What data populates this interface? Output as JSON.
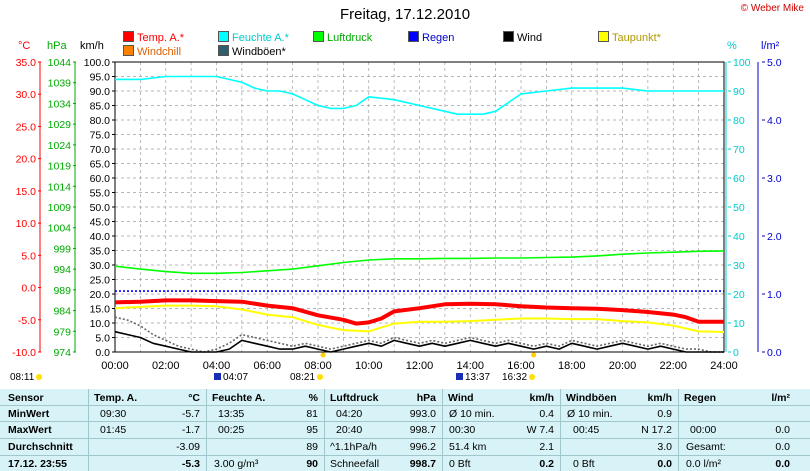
{
  "page": {
    "title": "Freitag, 17.12.2010",
    "copyright": "© Weber Mike"
  },
  "units": {
    "temp": "°C",
    "pressure": "hPa",
    "wind": "km/h",
    "humidity": "%",
    "rain": "l/m²"
  },
  "legend": [
    {
      "label": "Temp. A.*",
      "color": "#ff0000"
    },
    {
      "label": "Feuchte A.*",
      "color": "#00ffff"
    },
    {
      "label": "Luftdruck",
      "color": "#00ff00"
    },
    {
      "label": "Regen",
      "color": "#0000ff"
    },
    {
      "label": "Wind",
      "color": "#000000"
    },
    {
      "label": "Taupunkt*",
      "color": "#ffff00"
    },
    {
      "label": "Windchill",
      "color": "#ff8000"
    },
    {
      "label": "Windböen*",
      "color": "#2f5f6f"
    }
  ],
  "sun_events": [
    {
      "time": "08:11"
    },
    {
      "time": "04:07"
    },
    {
      "time": "08:21"
    },
    {
      "time": "13:37"
    },
    {
      "time": "16:32"
    }
  ],
  "chart_data": {
    "type": "line",
    "x_axis": {
      "label_ticks": [
        "00:00",
        "02:00",
        "04:00",
        "06:00",
        "08:00",
        "10:00",
        "12:00",
        "14:00",
        "16:00",
        "18:00",
        "20:00",
        "22:00",
        "24:00"
      ],
      "range_h": [
        0,
        24
      ]
    },
    "axes": {
      "temp": {
        "unit": "°C",
        "ticks": [
          "35.0",
          "30.0",
          "25.0",
          "20.0",
          "15.0",
          "10.0",
          "5.0",
          "0.0",
          "-5.0",
          "-10.0"
        ],
        "range": [
          -10,
          35
        ]
      },
      "pressure": {
        "unit": "hPa",
        "ticks": [
          "1044",
          "1039",
          "1034",
          "1029",
          "1024",
          "1019",
          "1014",
          "1009",
          "1004",
          "999",
          "994",
          "989",
          "984",
          "979",
          "974"
        ],
        "range": [
          974,
          1044
        ]
      },
      "wind": {
        "unit": "km/h",
        "ticks": [
          "100.0",
          "95.0",
          "90.0",
          "85.0",
          "80.0",
          "75.0",
          "70.0",
          "65.0",
          "60.0",
          "55.0",
          "50.0",
          "45.0",
          "40.0",
          "35.0",
          "30.0",
          "25.0",
          "20.0",
          "15.0",
          "10.0",
          "5.0",
          "0.0"
        ],
        "range": [
          0,
          100
        ]
      },
      "humidity": {
        "unit": "%",
        "ticks": [
          "100",
          "90",
          "80",
          "70",
          "60",
          "50",
          "40",
          "30",
          "20",
          "10",
          "0"
        ],
        "range": [
          0,
          100
        ]
      },
      "rain": {
        "unit": "l/m²",
        "ticks": [
          "5.0",
          "4.0",
          "3.0",
          "2.0",
          "1.0",
          "0.0"
        ],
        "range": [
          0,
          5
        ]
      }
    },
    "grid": true,
    "zero_line_temp": 0,
    "series": [
      {
        "name": "Feuchte A.*",
        "axis": "humidity",
        "color": "#00ffff",
        "x": [
          0,
          1,
          2,
          3,
          4,
          4.5,
          5,
          5.5,
          6,
          6.5,
          7,
          7.5,
          8,
          8.5,
          9,
          9.5,
          10,
          11,
          12,
          13,
          13.5,
          14,
          14.5,
          15,
          15.5,
          16,
          17,
          18,
          19,
          20,
          21,
          22,
          23,
          24
        ],
        "y": [
          94,
          94,
          95,
          95,
          95,
          94,
          93,
          91,
          90,
          90,
          89,
          87,
          85,
          84,
          84,
          85,
          88,
          87,
          85,
          83,
          82,
          82,
          82,
          83,
          86,
          89,
          90,
          91,
          91,
          91,
          90,
          90,
          90,
          90
        ]
      },
      {
        "name": "Luftdruck",
        "axis": "pressure",
        "color": "#00ff00",
        "x": [
          0,
          1,
          2,
          3,
          4,
          5,
          6,
          7,
          8,
          9,
          10,
          11,
          12,
          13,
          14,
          15,
          16,
          17,
          18,
          19,
          20,
          21,
          22,
          23,
          24
        ],
        "y": [
          994.7,
          994.0,
          993.4,
          993.0,
          993.0,
          993.2,
          993.6,
          994.0,
          994.8,
          995.6,
          996.2,
          996.5,
          996.5,
          996.6,
          996.6,
          996.7,
          996.7,
          996.8,
          996.9,
          997.2,
          997.6,
          997.9,
          998.1,
          998.3,
          998.4
        ]
      },
      {
        "name": "Temp. A.*",
        "axis": "temp",
        "color": "#ff0000",
        "width": 4,
        "x": [
          0,
          1,
          2,
          3,
          4,
          5,
          6,
          7,
          8,
          9,
          9.5,
          10,
          10.5,
          11,
          12,
          13,
          14,
          15,
          16,
          17,
          18,
          19,
          20,
          21,
          22,
          22.5,
          23,
          24
        ],
        "y": [
          -2.3,
          -2.2,
          -2.0,
          -2.0,
          -2.1,
          -2.2,
          -2.8,
          -3.2,
          -4.3,
          -5.0,
          -5.6,
          -5.4,
          -4.8,
          -3.7,
          -3.2,
          -2.6,
          -2.5,
          -2.6,
          -2.9,
          -3.1,
          -3.2,
          -3.3,
          -3.5,
          -3.8,
          -4.2,
          -4.6,
          -5.3,
          -5.3
        ]
      },
      {
        "name": "Taupunkt*",
        "axis": "temp",
        "color": "#ffff00",
        "width": 2,
        "x": [
          0,
          1,
          2,
          3,
          4,
          5,
          6,
          7,
          8,
          9,
          10,
          11,
          12,
          13,
          14,
          15,
          16,
          17,
          18,
          19,
          20,
          21,
          22,
          23,
          24
        ],
        "y": [
          -3.2,
          -3.0,
          -2.8,
          -2.8,
          -2.9,
          -3.4,
          -4.2,
          -4.6,
          -5.8,
          -6.6,
          -6.8,
          -5.6,
          -5.3,
          -5.3,
          -5.2,
          -5.0,
          -4.8,
          -4.8,
          -4.9,
          -4.9,
          -5.2,
          -5.4,
          -5.9,
          -6.8,
          -6.9
        ]
      },
      {
        "name": "Windböen*",
        "axis": "wind",
        "color": "#666666",
        "dashed": true,
        "x": [
          0,
          0.5,
          1,
          1.5,
          2,
          2.5,
          3,
          3.5,
          4,
          4.5,
          5,
          5.5,
          6,
          6.5,
          7,
          7.5,
          8,
          8.5,
          9,
          9.5,
          10,
          10.5,
          11,
          11.5,
          12,
          12.5,
          13,
          13.5,
          14,
          14.5,
          15,
          15.5,
          16,
          16.5,
          17,
          17.5,
          18,
          18.5,
          19,
          19.5,
          20,
          20.5,
          21,
          21.5,
          22,
          22.5,
          23,
          23.5,
          24
        ],
        "y": [
          12,
          11,
          9,
          6,
          4,
          2,
          1,
          0,
          1,
          3,
          6,
          5,
          4,
          3,
          2,
          3,
          2,
          1,
          2,
          3,
          4,
          3,
          5,
          4,
          3,
          4,
          3,
          4,
          5,
          4,
          3,
          4,
          3,
          2,
          3,
          2,
          4,
          3,
          2,
          3,
          4,
          3,
          2,
          3,
          2,
          1,
          1,
          0,
          0
        ]
      },
      {
        "name": "Wind",
        "axis": "wind",
        "color": "#000000",
        "x": [
          0,
          0.5,
          1,
          1.5,
          2,
          2.5,
          3,
          3.5,
          4,
          4.5,
          5,
          5.5,
          6,
          6.5,
          7,
          7.5,
          8,
          8.5,
          9,
          9.5,
          10,
          10.5,
          11,
          11.5,
          12,
          12.5,
          13,
          13.5,
          14,
          14.5,
          15,
          15.5,
          16,
          16.5,
          17,
          17.5,
          18,
          18.5,
          19,
          19.5,
          20,
          20.5,
          21,
          21.5,
          22,
          22.5,
          23,
          23.5,
          24
        ],
        "y": [
          7,
          6,
          5,
          3,
          2,
          1,
          0,
          0,
          0,
          1,
          4,
          3,
          2,
          1,
          1,
          2,
          1,
          0,
          1,
          2,
          3,
          2,
          4,
          3,
          2,
          3,
          2,
          3,
          4,
          3,
          2,
          3,
          2,
          1,
          2,
          1,
          3,
          2,
          1,
          2,
          3,
          2,
          1,
          2,
          1,
          0,
          0,
          0,
          0
        ]
      },
      {
        "name": "Regen",
        "axis": "humidity",
        "color": "#0000ff",
        "dashed": true,
        "x": [
          0,
          24
        ],
        "y": [
          21,
          21
        ]
      }
    ]
  },
  "stats": {
    "headers": {
      "sensor": "Sensor",
      "temp": "Temp. A.",
      "temp_unit": "°C",
      "hum": "Feuchte A.",
      "hum_unit": "%",
      "press": "Luftdruck",
      "press_unit": "hPa",
      "wind": "Wind",
      "wind_unit": "km/h",
      "gust": "Windböen",
      "gust_unit": "km/h",
      "rain": "Regen",
      "rain_unit": "l/m²"
    },
    "rows": [
      {
        "label": "MinWert",
        "temp_time": "09:30",
        "temp": "-5.7",
        "hum_time": "13:35",
        "hum": "81",
        "press_time": "04:20",
        "press": "993.0",
        "wind_lbl": "Ø 10 min.",
        "wind": "0.4",
        "gust_lbl": "Ø 10 min.",
        "gust": "0.9",
        "rain_lbl": "",
        "rain": ""
      },
      {
        "label": "MaxWert",
        "temp_time": "01:45",
        "temp": "-1.7",
        "hum_time": "00:25",
        "hum": "95",
        "press_time": "20:40",
        "press": "998.7",
        "wind_lbl": "00:30",
        "wind": "W 7.4",
        "gust_lbl": "00:45",
        "gust": "N 17.2",
        "rain_lbl": "00:00",
        "rain": "0.0"
      },
      {
        "label": "Durchschnitt",
        "temp_time": "",
        "temp": "-3.09",
        "hum_time": "",
        "hum": "89",
        "press_time": "^1.1hPa/h",
        "press": "996.2",
        "wind_lbl": "51.4 km",
        "wind": "2.1",
        "gust_lbl": "",
        "gust": "3.0",
        "rain_lbl": "Gesamt:",
        "rain": "0.0"
      },
      {
        "label": "17.12. 23:55",
        "temp_time": "",
        "temp": "-5.3",
        "hum_time": "3.00 g/m³",
        "hum": "90",
        "press_time": "Schneefall",
        "press": "998.7",
        "wind_lbl": "0 Bft",
        "wind": "0.2",
        "gust_lbl": "0 Bft",
        "gust": "0.0",
        "rain_lbl": "0.0 l/m²",
        "rain": "0.0"
      }
    ]
  }
}
